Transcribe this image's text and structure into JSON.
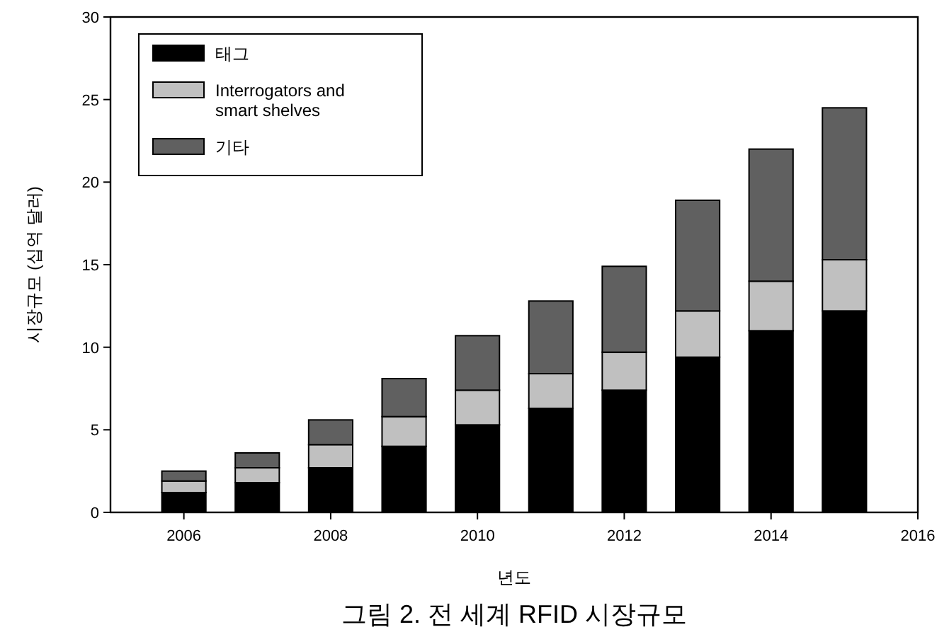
{
  "chart_data": {
    "type": "bar",
    "stacked": true,
    "title": "그림 2. 전 세계 RFID 시장규모",
    "xlabel": "년도",
    "ylabel": "시장규모 (십억 달러)",
    "x": [
      2006,
      2007,
      2008,
      2009,
      2010,
      2011,
      2012,
      2013,
      2014,
      2015
    ],
    "series": [
      {
        "name": "태그",
        "color": "#000000",
        "values": [
          1.2,
          1.8,
          2.7,
          4.0,
          5.3,
          6.3,
          7.4,
          9.4,
          11.0,
          12.2
        ]
      },
      {
        "name": "Interrogators and smart shelves",
        "color": "#c0c0c0",
        "values": [
          0.7,
          0.9,
          1.4,
          1.8,
          2.1,
          2.1,
          2.3,
          2.8,
          3.0,
          3.1
        ]
      },
      {
        "name": "기타",
        "color": "#606060",
        "values": [
          0.6,
          0.9,
          1.5,
          2.3,
          3.3,
          4.4,
          5.2,
          6.7,
          8.0,
          9.2
        ]
      }
    ],
    "xlim": [
      2005,
      2016
    ],
    "xticks": [
      2006,
      2008,
      2010,
      2012,
      2014,
      2016
    ],
    "ylim": [
      0,
      30
    ],
    "yticks": [
      0,
      5,
      10,
      15,
      20,
      25,
      30
    ],
    "grid": false,
    "legend": "top left"
  }
}
